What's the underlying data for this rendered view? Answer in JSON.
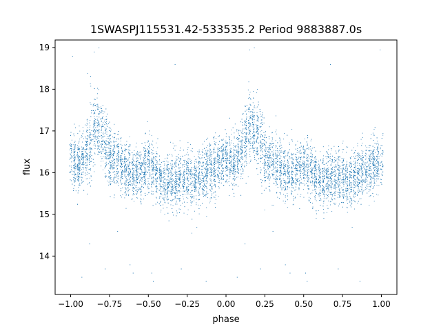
{
  "chart_data": {
    "type": "scatter",
    "title": "1SWASPJ115531.42-533535.2 Period 9883887.0s",
    "xlabel": "phase",
    "ylabel": "flux",
    "xlim": [
      -1.1,
      1.1
    ],
    "ylim": [
      13.08,
      19.18
    ],
    "xticks": [
      -1.0,
      -0.75,
      -0.5,
      -0.25,
      0.0,
      0.25,
      0.5,
      0.75,
      1.0
    ],
    "xtick_labels": [
      "−1.00",
      "−0.75",
      "−0.50",
      "−0.25",
      "0.00",
      "0.25",
      "0.50",
      "0.75",
      "1.00"
    ],
    "yticks": [
      14,
      15,
      16,
      17,
      18,
      19
    ],
    "ytick_labels": [
      "14",
      "15",
      "16",
      "17",
      "18",
      "19"
    ],
    "grid": false,
    "legend": "none",
    "marker_color": "#1f77b4",
    "phase_range": [
      -1.0,
      1.0
    ],
    "median_flux_profile": [
      {
        "phase": -1.0,
        "flux": 16.3
      },
      {
        "phase": -0.95,
        "flux": 16.2
      },
      {
        "phase": -0.9,
        "flux": 16.5
      },
      {
        "phase": -0.85,
        "flux": 17.1
      },
      {
        "phase": -0.8,
        "flux": 16.9
      },
      {
        "phase": -0.75,
        "flux": 16.4
      },
      {
        "phase": -0.7,
        "flux": 16.3
      },
      {
        "phase": -0.65,
        "flux": 16.1
      },
      {
        "phase": -0.6,
        "flux": 16.0
      },
      {
        "phase": -0.55,
        "flux": 16.0
      },
      {
        "phase": -0.5,
        "flux": 16.2
      },
      {
        "phase": -0.45,
        "flux": 16.0
      },
      {
        "phase": -0.4,
        "flux": 15.7
      },
      {
        "phase": -0.35,
        "flux": 15.9
      },
      {
        "phase": -0.3,
        "flux": 15.8
      },
      {
        "phase": -0.25,
        "flux": 15.9
      },
      {
        "phase": -0.2,
        "flux": 15.8
      },
      {
        "phase": -0.15,
        "flux": 16.0
      },
      {
        "phase": -0.1,
        "flux": 16.1
      },
      {
        "phase": -0.05,
        "flux": 16.2
      },
      {
        "phase": 0.0,
        "flux": 16.3
      },
      {
        "phase": 0.05,
        "flux": 16.2
      },
      {
        "phase": 0.1,
        "flux": 16.5
      },
      {
        "phase": 0.15,
        "flux": 17.1
      },
      {
        "phase": 0.2,
        "flux": 16.9
      },
      {
        "phase": 0.25,
        "flux": 16.4
      },
      {
        "phase": 0.3,
        "flux": 16.3
      },
      {
        "phase": 0.35,
        "flux": 16.1
      },
      {
        "phase": 0.4,
        "flux": 16.0
      },
      {
        "phase": 0.45,
        "flux": 16.0
      },
      {
        "phase": 0.5,
        "flux": 16.2
      },
      {
        "phase": 0.55,
        "flux": 16.0
      },
      {
        "phase": 0.6,
        "flux": 15.7
      },
      {
        "phase": 0.65,
        "flux": 15.9
      },
      {
        "phase": 0.7,
        "flux": 15.8
      },
      {
        "phase": 0.75,
        "flux": 15.9
      },
      {
        "phase": 0.8,
        "flux": 15.8
      },
      {
        "phase": 0.85,
        "flux": 16.0
      },
      {
        "phase": 0.9,
        "flux": 16.1
      },
      {
        "phase": 0.95,
        "flux": 16.2
      },
      {
        "phase": 1.0,
        "flux": 16.3
      }
    ],
    "outlier_points": [
      {
        "x": -0.93,
        "y": 13.5
      },
      {
        "x": -0.88,
        "y": 14.3
      },
      {
        "x": -0.78,
        "y": 13.7
      },
      {
        "x": -0.62,
        "y": 13.8
      },
      {
        "x": -0.6,
        "y": 13.6
      },
      {
        "x": -0.48,
        "y": 13.6
      },
      {
        "x": -0.47,
        "y": 13.4
      },
      {
        "x": -0.29,
        "y": 13.7
      },
      {
        "x": -0.13,
        "y": 13.4
      },
      {
        "x": 0.07,
        "y": 13.5
      },
      {
        "x": 0.12,
        "y": 14.3
      },
      {
        "x": 0.22,
        "y": 13.7
      },
      {
        "x": 0.38,
        "y": 13.8
      },
      {
        "x": 0.41,
        "y": 13.6
      },
      {
        "x": 0.51,
        "y": 13.6
      },
      {
        "x": 0.52,
        "y": 13.4
      },
      {
        "x": 0.72,
        "y": 13.7
      },
      {
        "x": 0.86,
        "y": 13.4
      },
      {
        "x": -0.85,
        "y": 18.9
      },
      {
        "x": -0.82,
        "y": 19.0
      },
      {
        "x": 0.15,
        "y": 18.95
      },
      {
        "x": 0.18,
        "y": 19.0
      },
      {
        "x": 0.99,
        "y": 18.95
      },
      {
        "x": -0.99,
        "y": 18.8
      },
      {
        "x": -0.33,
        "y": 18.6
      },
      {
        "x": 0.67,
        "y": 18.6
      },
      {
        "x": -0.19,
        "y": 14.7
      },
      {
        "x": 0.81,
        "y": 14.7
      },
      {
        "x": -0.7,
        "y": 14.6
      },
      {
        "x": 0.3,
        "y": 14.6
      }
    ]
  }
}
